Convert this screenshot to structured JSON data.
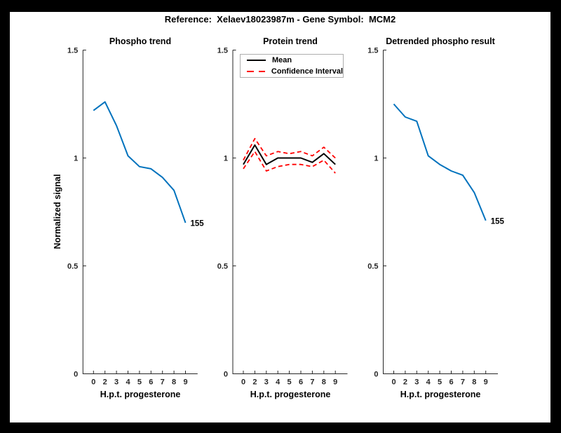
{
  "figure": {
    "title": "Reference:  Xelaev18023987m - Gene Symbol:  MCM2",
    "background": "#ffffff",
    "border_color": "#000000"
  },
  "axes": {
    "xlabel": "H.p.t. progesterone",
    "ylabel": "Normalized signal",
    "xtick_labels": [
      "0",
      "2",
      "3",
      "4",
      "5",
      "6",
      "7",
      "8",
      "9"
    ],
    "ytick_labels": [
      "0",
      "0.5",
      "1",
      "1.5"
    ],
    "ytick_values": [
      0,
      0.5,
      1,
      1.5
    ],
    "ylim": [
      0,
      1.5
    ],
    "axis_color": "#262626"
  },
  "chart_data": [
    {
      "type": "line",
      "title": "Phospho trend",
      "xlabel": "H.p.t. progesterone",
      "ylabel": "Normalized signal",
      "x_tick_labels": [
        "0",
        "2",
        "3",
        "4",
        "5",
        "6",
        "7",
        "8",
        "9"
      ],
      "ylim": [
        0,
        1.5
      ],
      "grid": false,
      "end_label": "155",
      "series": [
        {
          "id": "phospho-trend-line",
          "color": "#0072BD",
          "dash": "solid",
          "width": 2,
          "values": [
            1.22,
            1.26,
            1.15,
            1.01,
            0.96,
            0.95,
            0.91,
            0.85,
            0.7
          ]
        }
      ]
    },
    {
      "type": "line",
      "title": "Protein trend",
      "xlabel": "H.p.t. progesterone",
      "x_tick_labels": [
        "0",
        "2",
        "3",
        "4",
        "5",
        "6",
        "7",
        "8",
        "9"
      ],
      "ylim": [
        0,
        1.5
      ],
      "grid": false,
      "legend": {
        "position": "top-left",
        "items": [
          {
            "label": "Mean",
            "color": "#000000",
            "style": "solid"
          },
          {
            "label": "Confidence Interval",
            "color": "#FF0000",
            "style": "dashed"
          }
        ]
      },
      "series": [
        {
          "id": "protein-mean-line",
          "color": "#000000",
          "dash": "solid",
          "width": 2,
          "values": [
            0.97,
            1.06,
            0.97,
            1.0,
            1.0,
            1.0,
            0.98,
            1.02,
            0.97
          ]
        },
        {
          "id": "ci-upper-line",
          "color": "#FF0000",
          "dash": "dashed",
          "width": 1.8,
          "values": [
            0.99,
            1.09,
            1.01,
            1.03,
            1.02,
            1.03,
            1.01,
            1.05,
            1.0
          ]
        },
        {
          "id": "ci-lower-line",
          "color": "#FF0000",
          "dash": "dashed",
          "width": 1.8,
          "values": [
            0.95,
            1.03,
            0.94,
            0.96,
            0.97,
            0.97,
            0.96,
            0.99,
            0.93
          ]
        }
      ]
    },
    {
      "type": "line",
      "title": "Detrended phospho result",
      "xlabel": "H.p.t. progesterone",
      "x_tick_labels": [
        "0",
        "2",
        "3",
        "4",
        "5",
        "6",
        "7",
        "8",
        "9"
      ],
      "ylim": [
        0,
        1.5
      ],
      "grid": false,
      "end_label": "155",
      "series": [
        {
          "id": "detrended-phospho-line",
          "color": "#0072BD",
          "dash": "solid",
          "width": 2,
          "values": [
            1.25,
            1.19,
            1.17,
            1.01,
            0.97,
            0.94,
            0.92,
            0.84,
            0.71
          ]
        }
      ]
    }
  ]
}
